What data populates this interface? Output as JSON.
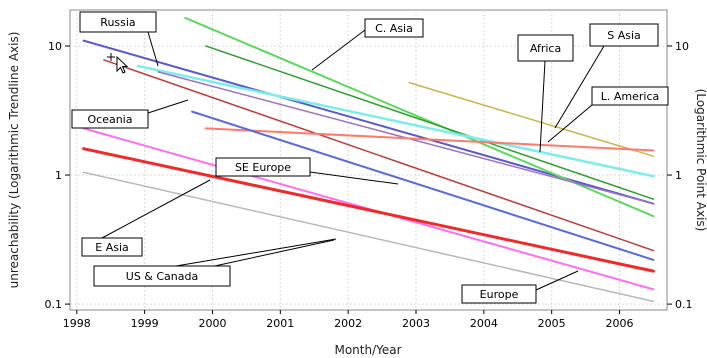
{
  "chart_data": {
    "type": "line",
    "title": "",
    "xlabel": "Month/Year",
    "ylabel_left": "unreachability (Logarithmic Trendline Axis)",
    "ylabel_right": "(Logarithmic Point Axis)",
    "x_ticks": [
      "1998",
      "1999",
      "2000",
      "2001",
      "2002",
      "2003",
      "2004",
      "2005",
      "2006"
    ],
    "y_ticks": [
      {
        "value": 0.1,
        "label": "0.1"
      },
      {
        "value": 1,
        "label": "1"
      },
      {
        "value": 10,
        "label": "10"
      }
    ],
    "y_ticks_right": [
      {
        "value": 0.1,
        "label": "0.1"
      },
      {
        "value": 1,
        "label": "1"
      },
      {
        "value": 10,
        "label": "10"
      }
    ],
    "xlim": [
      1997.9,
      2006.7
    ],
    "ylim": [
      0.09,
      19
    ],
    "yscale": "log",
    "grid": true,
    "series": [
      {
        "name": "Russia",
        "color": "#5a5acc",
        "width": 2,
        "x": [
          1998.1,
          2006.5
        ],
        "y": [
          11.0,
          0.6
        ]
      },
      {
        "name": "C. Asia",
        "color": "#5cd85c",
        "width": 2,
        "x": [
          1999.6,
          2006.5
        ],
        "y": [
          16.5,
          0.48
        ]
      },
      {
        "name": "",
        "color": "#2e9e2e",
        "width": 1.5,
        "x": [
          1999.9,
          2006.5
        ],
        "y": [
          10.0,
          0.65
        ]
      },
      {
        "name": "Oceania",
        "color": "#bb3b3b",
        "width": 1.5,
        "x": [
          1998.4,
          2006.5
        ],
        "y": [
          7.8,
          0.26
        ]
      },
      {
        "name": "",
        "color": "#7cecec",
        "width": 2.5,
        "x": [
          1998.9,
          2006.5
        ],
        "y": [
          7.0,
          0.98
        ]
      },
      {
        "name": "S Asia",
        "color": "#a070c0",
        "width": 1.5,
        "x": [
          1999.2,
          2006.5
        ],
        "y": [
          6.3,
          0.6
        ]
      },
      {
        "name": "Africa",
        "color": "#c8b450",
        "width": 1.5,
        "x": [
          2002.9,
          2006.5
        ],
        "y": [
          5.2,
          1.4
        ]
      },
      {
        "name": "L. America",
        "color": "#ff7a6a",
        "width": 2,
        "x": [
          1999.9,
          2006.5
        ],
        "y": [
          2.3,
          1.55
        ]
      },
      {
        "name": "SE Europe",
        "color": "#5a6ad8",
        "width": 2,
        "x": [
          1999.7,
          2006.5
        ],
        "y": [
          3.1,
          0.22
        ]
      },
      {
        "name": "",
        "color": "#ff6ef0",
        "width": 2,
        "x": [
          1998.1,
          2006.5
        ],
        "y": [
          2.3,
          0.13
        ]
      },
      {
        "name": "E Asia",
        "color": "#ee2a2a",
        "width": 3,
        "x": [
          1998.1,
          2006.5
        ],
        "y": [
          1.6,
          0.18
        ]
      },
      {
        "name": "US & Canada",
        "color": "#b8b8b8",
        "width": 1.5,
        "x": [
          1998.1,
          2006.5
        ],
        "y": [
          1.05,
          0.105
        ]
      }
    ],
    "annotations": [
      {
        "label": "Russia"
      },
      {
        "label": "C. Asia"
      },
      {
        "label": "Africa"
      },
      {
        "label": "S Asia"
      },
      {
        "label": "L. America"
      },
      {
        "label": "Oceania"
      },
      {
        "label": "SE Europe"
      },
      {
        "label": "E Asia"
      },
      {
        "label": "US & Canada"
      },
      {
        "label": "Europe"
      }
    ]
  }
}
